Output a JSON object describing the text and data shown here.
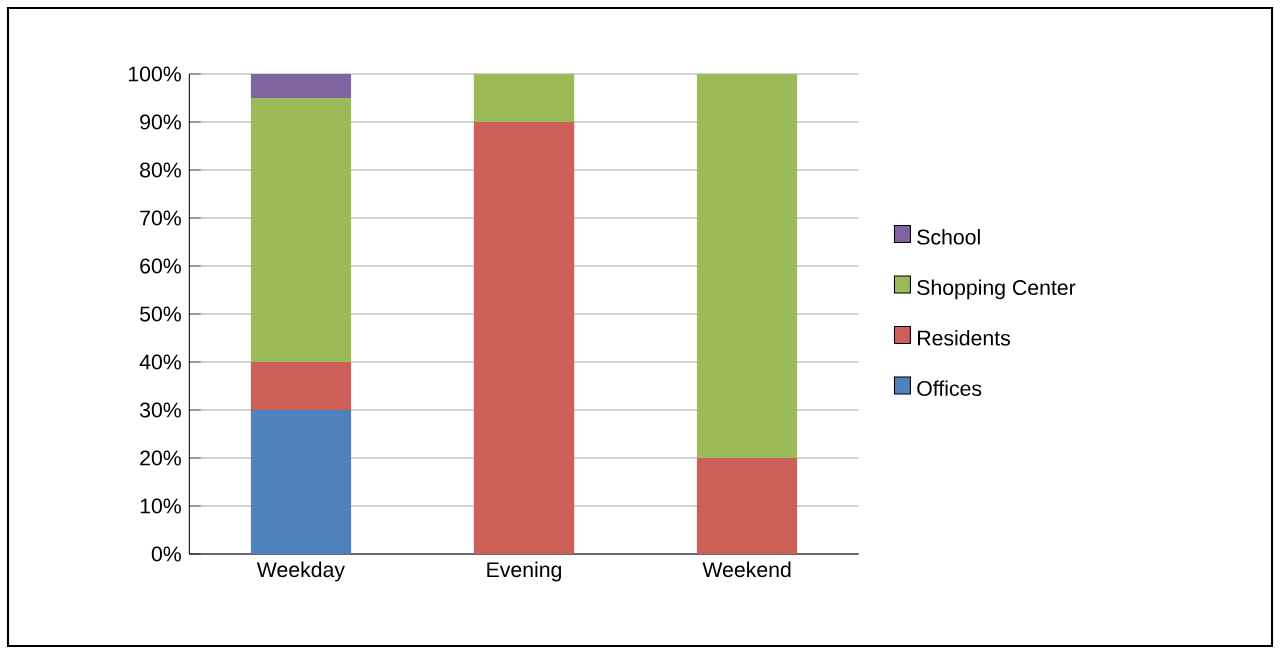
{
  "chart_data": {
    "type": "bar",
    "stacked": true,
    "categories": [
      "Weekday",
      "Evening",
      "Weekend"
    ],
    "series": [
      {
        "name": "Offices",
        "color": "#4f81bd",
        "values": [
          30,
          0,
          0
        ]
      },
      {
        "name": "Residents",
        "color": "#cc5f58",
        "values": [
          10,
          90,
          20
        ]
      },
      {
        "name": "Shopping Center",
        "color": "#9bbb59",
        "values": [
          55,
          10,
          80
        ]
      },
      {
        "name": "School",
        "color": "#8064a2",
        "values": [
          5,
          0,
          0
        ]
      }
    ],
    "ylim": [
      0,
      100
    ],
    "yticks": [
      {
        "value": 0,
        "label": "0%"
      },
      {
        "value": 10,
        "label": "10%"
      },
      {
        "value": 20,
        "label": "20%"
      },
      {
        "value": 30,
        "label": "30%"
      },
      {
        "value": 40,
        "label": "40%"
      },
      {
        "value": 50,
        "label": "50%"
      },
      {
        "value": 60,
        "label": "60%"
      },
      {
        "value": 70,
        "label": "70%"
      },
      {
        "value": 80,
        "label": "80%"
      },
      {
        "value": 90,
        "label": "90%"
      },
      {
        "value": 100,
        "label": "100%"
      }
    ],
    "grid": "y",
    "legend": "right"
  }
}
